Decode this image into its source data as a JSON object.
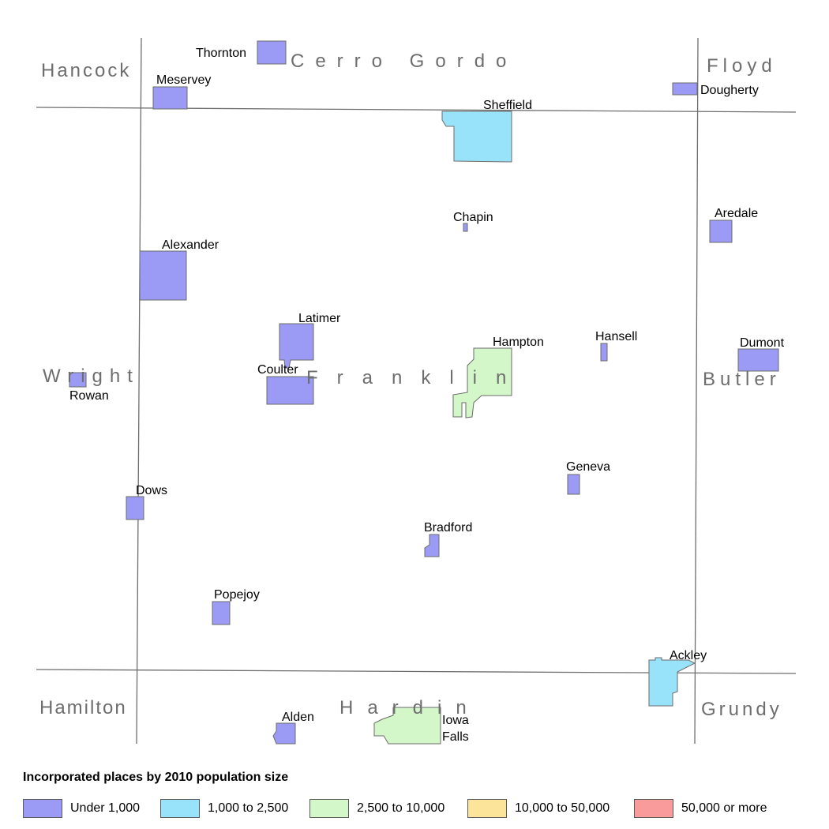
{
  "legend": {
    "title": "Incorporated places by 2010 population size",
    "classes": [
      {
        "label": "Under 1,000",
        "color": "#9b9bf5"
      },
      {
        "label": "1,000 to 2,500",
        "color": "#99e3fa"
      },
      {
        "label": "2,500 to 10,000",
        "color": "#d3f7c8"
      },
      {
        "label": "10,000 to 50,000",
        "color": "#fde49b"
      },
      {
        "label": "50,000 or more",
        "color": "#fa9b9b"
      }
    ]
  },
  "counties": {
    "center": "Franklin",
    "hancock": "Hancock",
    "cerro_gordo": "Cerro Gordo",
    "floyd": "Floyd",
    "wright": "Wright",
    "butler": "Butler",
    "hamilton": "Hamilton",
    "hardin": "Hardin",
    "grundy": "Grundy"
  },
  "places": [
    {
      "name": "Thornton",
      "population_class": "Under 1,000"
    },
    {
      "name": "Meservey",
      "population_class": "Under 1,000"
    },
    {
      "name": "Dougherty",
      "population_class": "Under 1,000"
    },
    {
      "name": "Sheffield",
      "population_class": "1,000 to 2,500"
    },
    {
      "name": "Chapin",
      "population_class": "Under 1,000"
    },
    {
      "name": "Aredale",
      "population_class": "Under 1,000"
    },
    {
      "name": "Alexander",
      "population_class": "Under 1,000"
    },
    {
      "name": "Latimer",
      "population_class": "Under 1,000"
    },
    {
      "name": "Hampton",
      "population_class": "2,500 to 10,000"
    },
    {
      "name": "Hansell",
      "population_class": "Under 1,000"
    },
    {
      "name": "Dumont",
      "population_class": "Under 1,000"
    },
    {
      "name": "Coulter",
      "population_class": "Under 1,000"
    },
    {
      "name": "Rowan",
      "population_class": "Under 1,000"
    },
    {
      "name": "Geneva",
      "population_class": "Under 1,000"
    },
    {
      "name": "Dows",
      "population_class": "Under 1,000"
    },
    {
      "name": "Bradford",
      "population_class": "Under 1,000"
    },
    {
      "name": "Popejoy",
      "population_class": "Under 1,000"
    },
    {
      "name": "Ackley",
      "population_class": "1,000 to 2,500"
    },
    {
      "name": "Alden",
      "population_class": "Under 1,000"
    },
    {
      "name": "Iowa Falls",
      "population_class": "2,500 to 10,000"
    }
  ],
  "colors": {
    "under_1000": "#9b9bf5",
    "c1000_2500": "#99e3fa",
    "c2500_10000": "#d3f7c8",
    "boundary": "#6e6e6e",
    "place_outline": "#6b6b6b"
  }
}
